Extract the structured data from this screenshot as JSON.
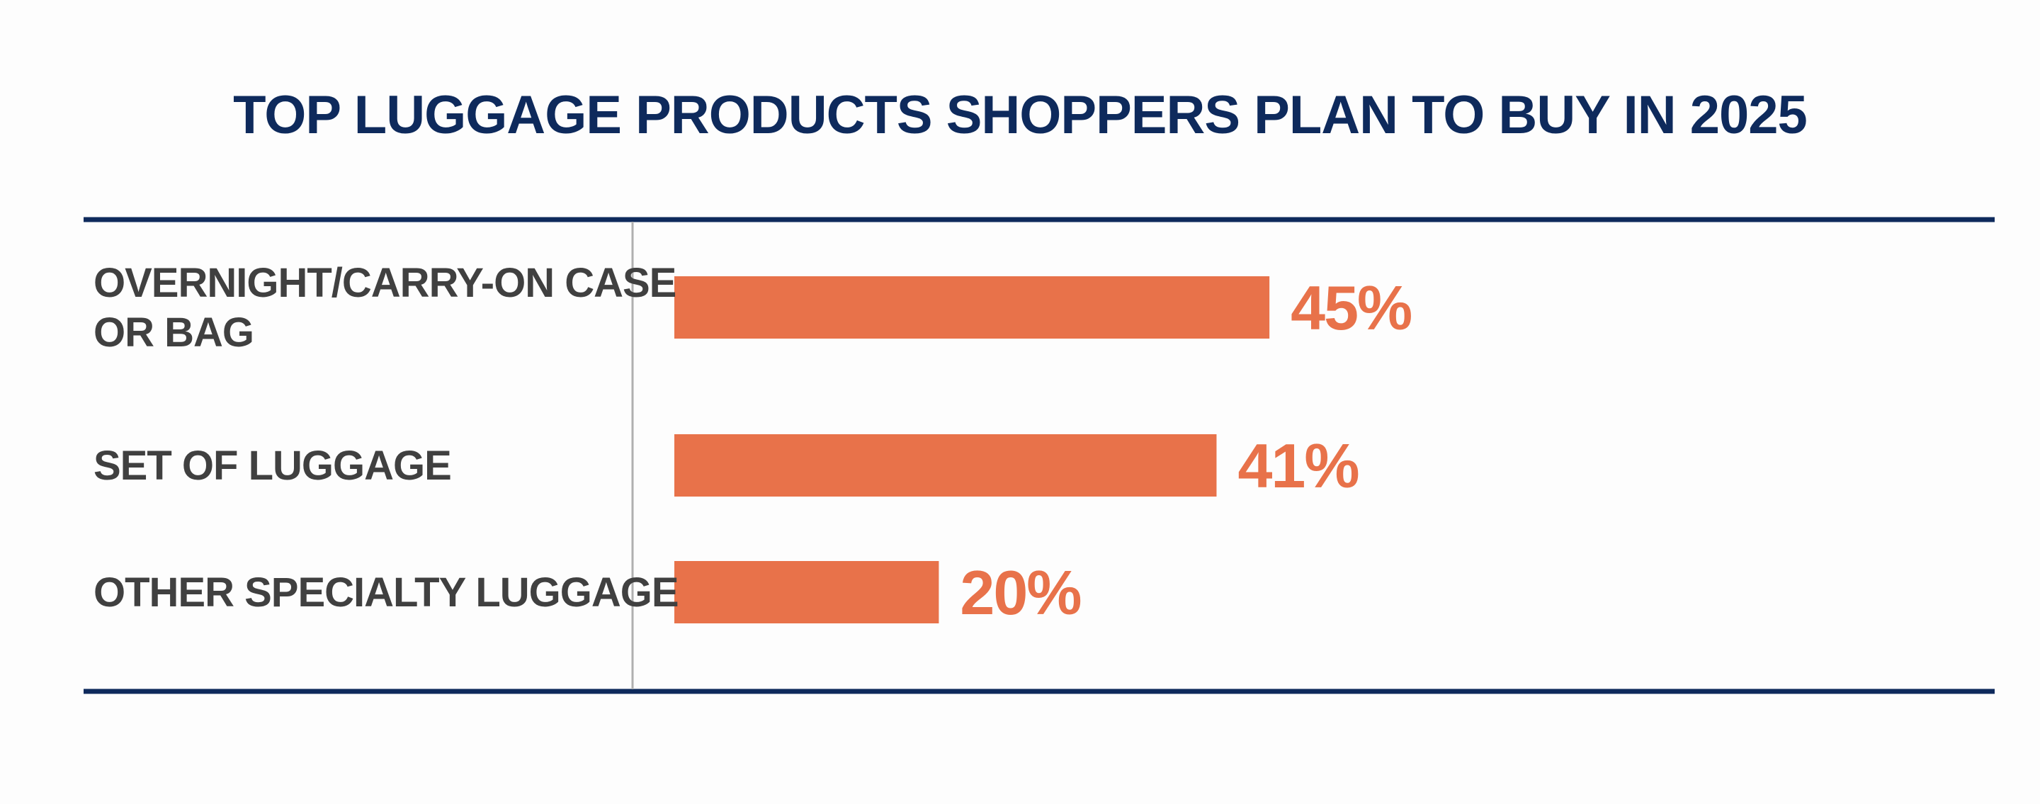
{
  "chart_data": {
    "type": "bar",
    "orientation": "horizontal",
    "title": "TOP LUGGAGE PRODUCTS SHOPPERS PLAN TO BUY IN 2025",
    "categories": [
      [
        "OVERNIGHT/CARRY-ON CASE",
        "OR BAG"
      ],
      [
        "SET OF LUGGAGE"
      ],
      [
        "OTHER SPECIALTY LUGGAGE"
      ]
    ],
    "values": [
      45,
      41,
      20
    ],
    "value_labels": [
      "45%",
      "41%",
      "20%"
    ],
    "unit": "%",
    "xlim": [
      0,
      100
    ],
    "grid": false,
    "legend": "none"
  },
  "colors": {
    "bar": "#e8724a",
    "value_text": "#e8724a",
    "title": "#0e2a5c",
    "rule": "#0e2a5c",
    "category_text": "#404040",
    "axis": "#b0b0b0",
    "background": "#fdfdfd"
  }
}
